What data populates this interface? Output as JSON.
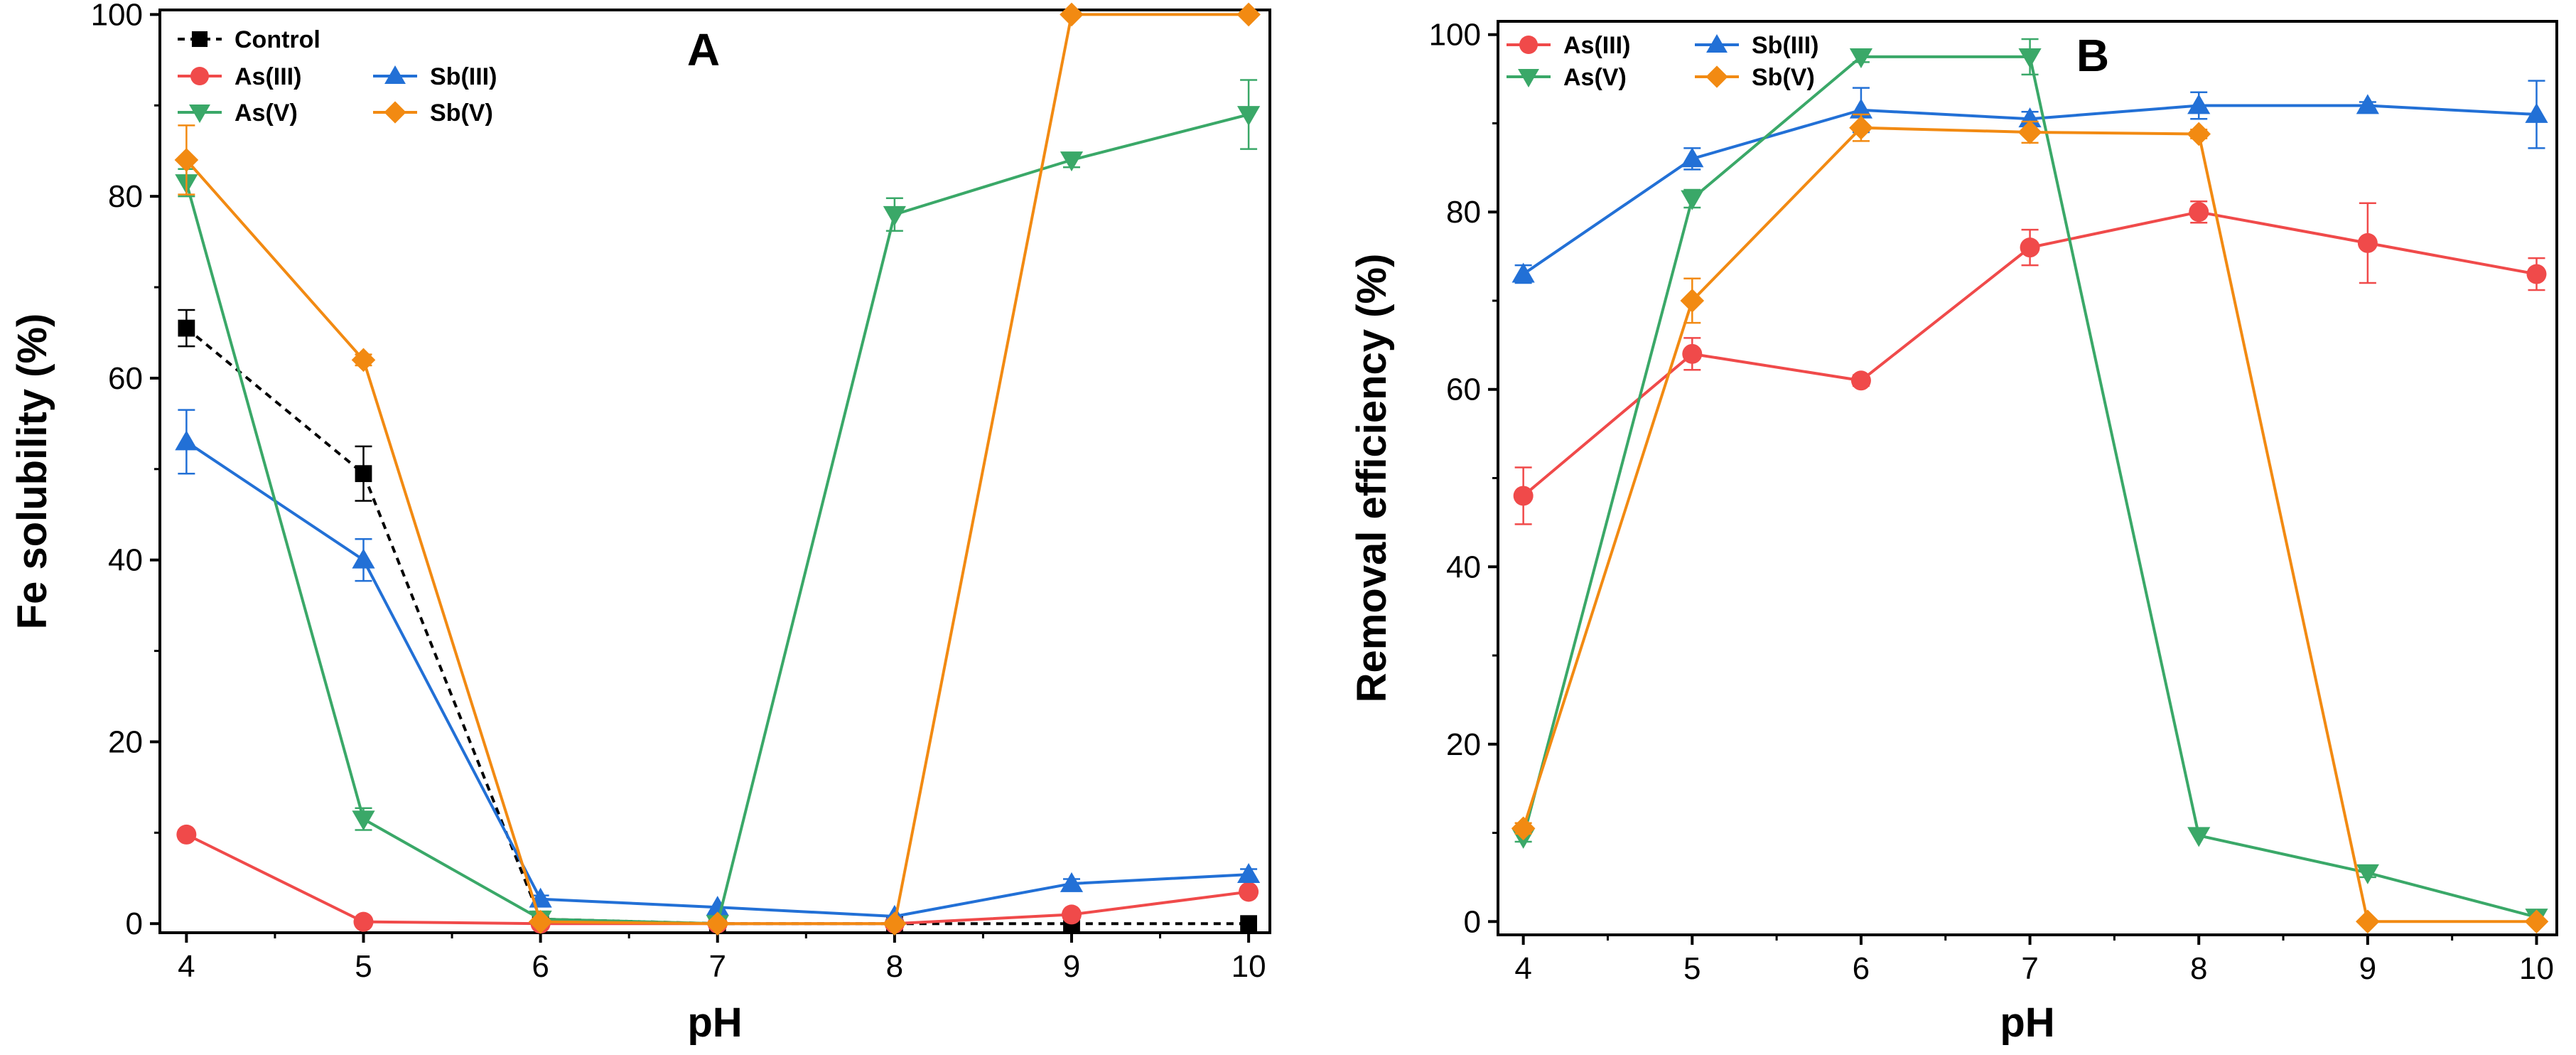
{
  "colors": {
    "control": "#000000",
    "as_iii": "#f04a4a",
    "as_v": "#3aa868",
    "sb_iii": "#2270d6",
    "sb_v": "#f28a12"
  },
  "chart_data": [
    {
      "type": "line",
      "panel_label": "A",
      "xlabel": "pH",
      "ylabel": "Fe solubility (%)",
      "x": [
        4,
        5,
        6,
        7,
        8,
        9,
        10
      ],
      "xlim": [
        3.85,
        10.12
      ],
      "ylim": [
        -1,
        100.5
      ],
      "xticks": [
        "4",
        "5",
        "6",
        "7",
        "8",
        "9",
        "10"
      ],
      "yticks": [
        "0",
        "20",
        "40",
        "60",
        "80",
        "100"
      ],
      "legend_position": "top-left",
      "legend": [
        {
          "label": "Control",
          "series": 0
        },
        {
          "label": "As(III)",
          "series": 1
        },
        {
          "label": "Sb(III)",
          "series": 2
        },
        {
          "label": "As(V)",
          "series": 3
        },
        {
          "label": "Sb(V)",
          "series": 4
        }
      ],
      "series": [
        {
          "name": "Control",
          "color": "#000000",
          "marker": "square",
          "dashed": true,
          "values": [
            65.5,
            49.5,
            0.5,
            0.0,
            0.0,
            0.0,
            0.0
          ],
          "errors": [
            2.0,
            3.0,
            0.3,
            0.2,
            0.2,
            0.2,
            0.2
          ]
        },
        {
          "name": "As(III)",
          "color": "#f04a4a",
          "marker": "circle",
          "dashed": false,
          "values": [
            9.8,
            0.2,
            0.0,
            0.0,
            0.0,
            1.0,
            3.5
          ],
          "errors": [
            0.5,
            0.3,
            0.2,
            0.2,
            0.2,
            0.3,
            0.5
          ]
        },
        {
          "name": "Sb(III)",
          "color": "#2270d6",
          "marker": "triangle-up",
          "dashed": false,
          "values": [
            53.0,
            40.0,
            2.7,
            1.8,
            0.8,
            4.4,
            5.4
          ],
          "errors": [
            3.5,
            2.3,
            0.4,
            0.3,
            0.3,
            0.5,
            0.6
          ]
        },
        {
          "name": "As(V)",
          "color": "#3aa868",
          "marker": "triangle-down",
          "dashed": false,
          "values": [
            81.5,
            11.5,
            0.5,
            0.0,
            78.0,
            84.0,
            89.0
          ],
          "errors": [
            1.5,
            1.2,
            0.3,
            0.2,
            1.8,
            0.8,
            3.8
          ]
        },
        {
          "name": "Sb(V)",
          "color": "#f28a12",
          "marker": "diamond",
          "dashed": false,
          "values": [
            84.0,
            62.0,
            0.2,
            0.0,
            0.0,
            100.0,
            100.0
          ],
          "errors": [
            3.8,
            0.6,
            0.2,
            0.2,
            0.2,
            0.2,
            0.2
          ]
        }
      ]
    },
    {
      "type": "line",
      "panel_label": "B",
      "xlabel": "pH",
      "ylabel": "Removal efficiency (%)",
      "x": [
        4,
        5,
        6,
        7,
        8,
        9,
        10
      ],
      "xlim": [
        3.85,
        10.12
      ],
      "ylim": [
        -1.5,
        101.5
      ],
      "xticks": [
        "4",
        "5",
        "6",
        "7",
        "8",
        "9",
        "10"
      ],
      "yticks": [
        "0",
        "20",
        "40",
        "60",
        "80",
        "100"
      ],
      "legend_position": "top-left",
      "legend": [
        {
          "label": "As(III)",
          "series": 0
        },
        {
          "label": "Sb(III)",
          "series": 1
        },
        {
          "label": "As(V)",
          "series": 2
        },
        {
          "label": "Sb(V)",
          "series": 3
        }
      ],
      "series": [
        {
          "name": "As(III)",
          "color": "#f04a4a",
          "marker": "circle",
          "dashed": false,
          "values": [
            48.0,
            64.0,
            61.0,
            76.0,
            80.0,
            76.5,
            73.0
          ],
          "errors": [
            3.2,
            1.8,
            0.6,
            2.0,
            1.2,
            4.5,
            1.8
          ]
        },
        {
          "name": "Sb(III)",
          "color": "#2270d6",
          "marker": "triangle-up",
          "dashed": false,
          "values": [
            73.0,
            86.0,
            91.5,
            90.5,
            92.0,
            92.0,
            91.0
          ],
          "errors": [
            1.0,
            1.2,
            2.5,
            0.8,
            1.5,
            0.4,
            3.8
          ]
        },
        {
          "name": "As(V)",
          "color": "#3aa868",
          "marker": "triangle-down",
          "dashed": false,
          "values": [
            9.5,
            81.5,
            97.5,
            97.5,
            9.7,
            5.5,
            0.5
          ],
          "errors": [
            0.5,
            1.0,
            0.6,
            2.0,
            0.3,
            0.5,
            0.2
          ]
        },
        {
          "name": "Sb(V)",
          "color": "#f28a12",
          "marker": "diamond",
          "dashed": false,
          "values": [
            10.5,
            70.0,
            89.5,
            89.0,
            88.8,
            0.0,
            0.0
          ],
          "errors": [
            0.6,
            2.5,
            1.5,
            1.2,
            0.5,
            0.2,
            0.2
          ]
        }
      ]
    }
  ]
}
